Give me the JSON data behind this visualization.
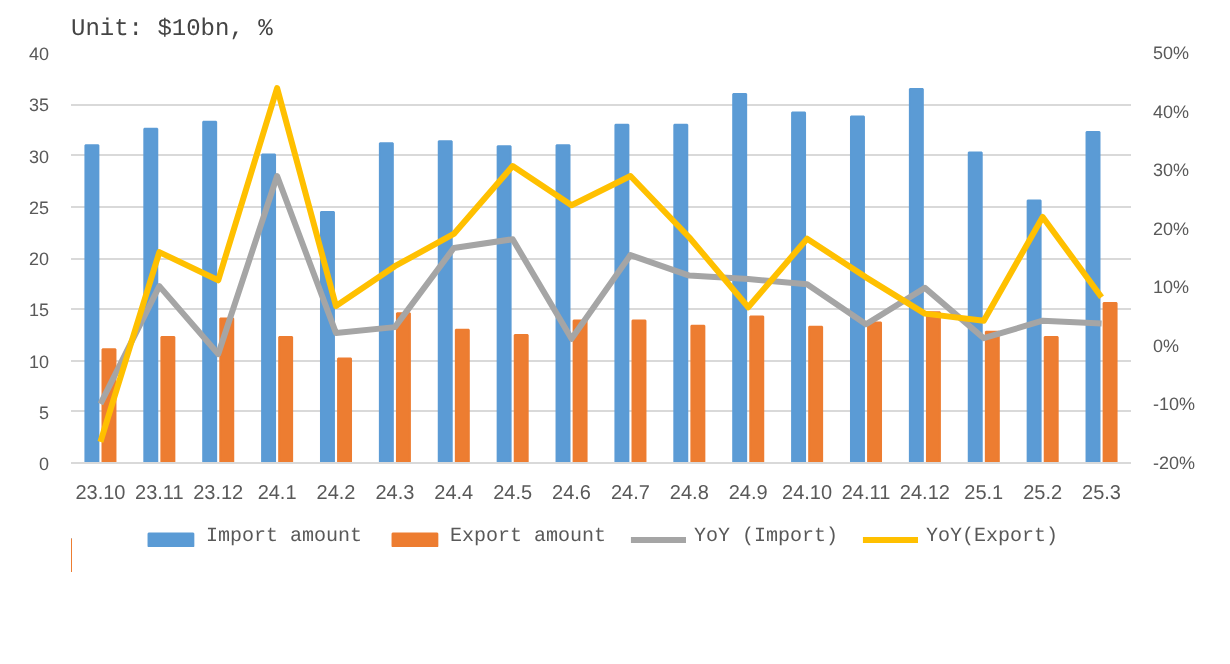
{
  "chart_data": {
    "type": "bar",
    "title": "Unit: $10bn, %",
    "categories": [
      "23.10",
      "23.11",
      "23.12",
      "24.1",
      "24.2",
      "24.3",
      "24.4",
      "24.5",
      "24.6",
      "24.7",
      "24.8",
      "24.9",
      "24.10",
      "24.11",
      "24.12",
      "25.1",
      "25.2",
      "25.3"
    ],
    "series": [
      {
        "name": "Import amount",
        "color": "#5b9bd5",
        "values": [
          31,
          32.6,
          33.3,
          30.1,
          24.5,
          31.2,
          31.4,
          30.9,
          31,
          33,
          33,
          36,
          34.2,
          33.8,
          36.5,
          30.3,
          25.6,
          32.3
        ]
      },
      {
        "name": "Export amount",
        "color": "#ed7d31",
        "values": [
          11.1,
          12.3,
          14.1,
          12.3,
          10.2,
          14.6,
          13,
          12.5,
          13.9,
          13.9,
          13.4,
          14.3,
          13.3,
          13.7,
          14.7,
          12.8,
          12.3,
          15.6
        ]
      },
      {
        "name": "YoY (Import)",
        "type": "line",
        "axis": "y2",
        "color": "#a5a5a5",
        "values": [
          -9.9,
          10.2,
          -1.4,
          29,
          2.2,
          3.2,
          16.7,
          18.2,
          1.2,
          15.5,
          12,
          11.4,
          10.5,
          3.7,
          9.9,
          1.3,
          4.3,
          3.8
        ]
      },
      {
        "name": "YoY(Export)",
        "type": "line",
        "axis": "y2",
        "color": "#ffc000",
        "values": [
          -16.4,
          16,
          11.2,
          44,
          6.8,
          13.6,
          19.1,
          30.7,
          24,
          29,
          18.5,
          6.6,
          18.3,
          11.7,
          5.5,
          4.3,
          22,
          8.3
        ]
      }
    ],
    "ylim": [
      0,
      40
    ],
    "yticks": [
      0,
      5,
      10,
      15,
      20,
      25,
      30,
      35,
      40
    ],
    "y2lim": [
      -20,
      50
    ],
    "y2ticks": [
      {
        "value": -20,
        "label": "-20%"
      },
      {
        "value": -10,
        "label": "-10%"
      },
      {
        "value": 0,
        "label": "0%"
      },
      {
        "value": 10,
        "label": "10%"
      },
      {
        "value": 20,
        "label": "20%"
      },
      {
        "value": 30,
        "label": "30%"
      },
      {
        "value": 40,
        "label": "40%"
      },
      {
        "value": 50,
        "label": "50%"
      }
    ],
    "grid": "y",
    "legend": "bottom"
  }
}
